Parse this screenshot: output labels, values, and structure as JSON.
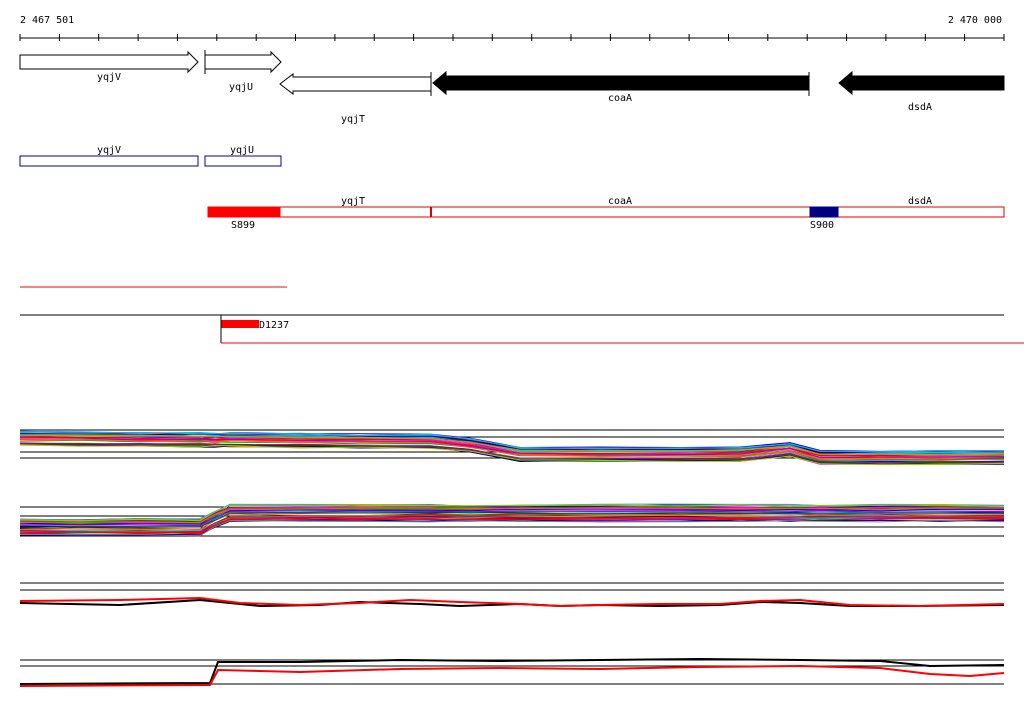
{
  "ruler": {
    "start_label": "2 467 501",
    "end_label": "2 470 000"
  },
  "genes": [
    {
      "name": "yqjV",
      "strand": "+",
      "style": "outline"
    },
    {
      "name": "yqjU",
      "strand": "+",
      "style": "outline"
    },
    {
      "name": "yqjT",
      "strand": "-",
      "style": "outline"
    },
    {
      "name": "coaA",
      "strand": "-",
      "style": "filled"
    },
    {
      "name": "dsdA",
      "strand": "-",
      "style": "filled"
    }
  ],
  "plus_strand_track": {
    "labels": [
      "yqjV",
      "yqjU"
    ],
    "color": "#0000aa"
  },
  "minus_strand_track": {
    "labels": [
      "yqjT",
      "coaA",
      "dsdA"
    ],
    "color": "#dd0000",
    "features": [
      {
        "label": "S899",
        "color": "#ff0000"
      },
      {
        "label": "S900",
        "color": "#000080"
      }
    ]
  },
  "segment_track": {
    "feature_label": "D1237",
    "color": "#ff0000"
  },
  "colors": {
    "accent_red": "#ff0000",
    "navy": "#000080",
    "black": "#000000"
  }
}
